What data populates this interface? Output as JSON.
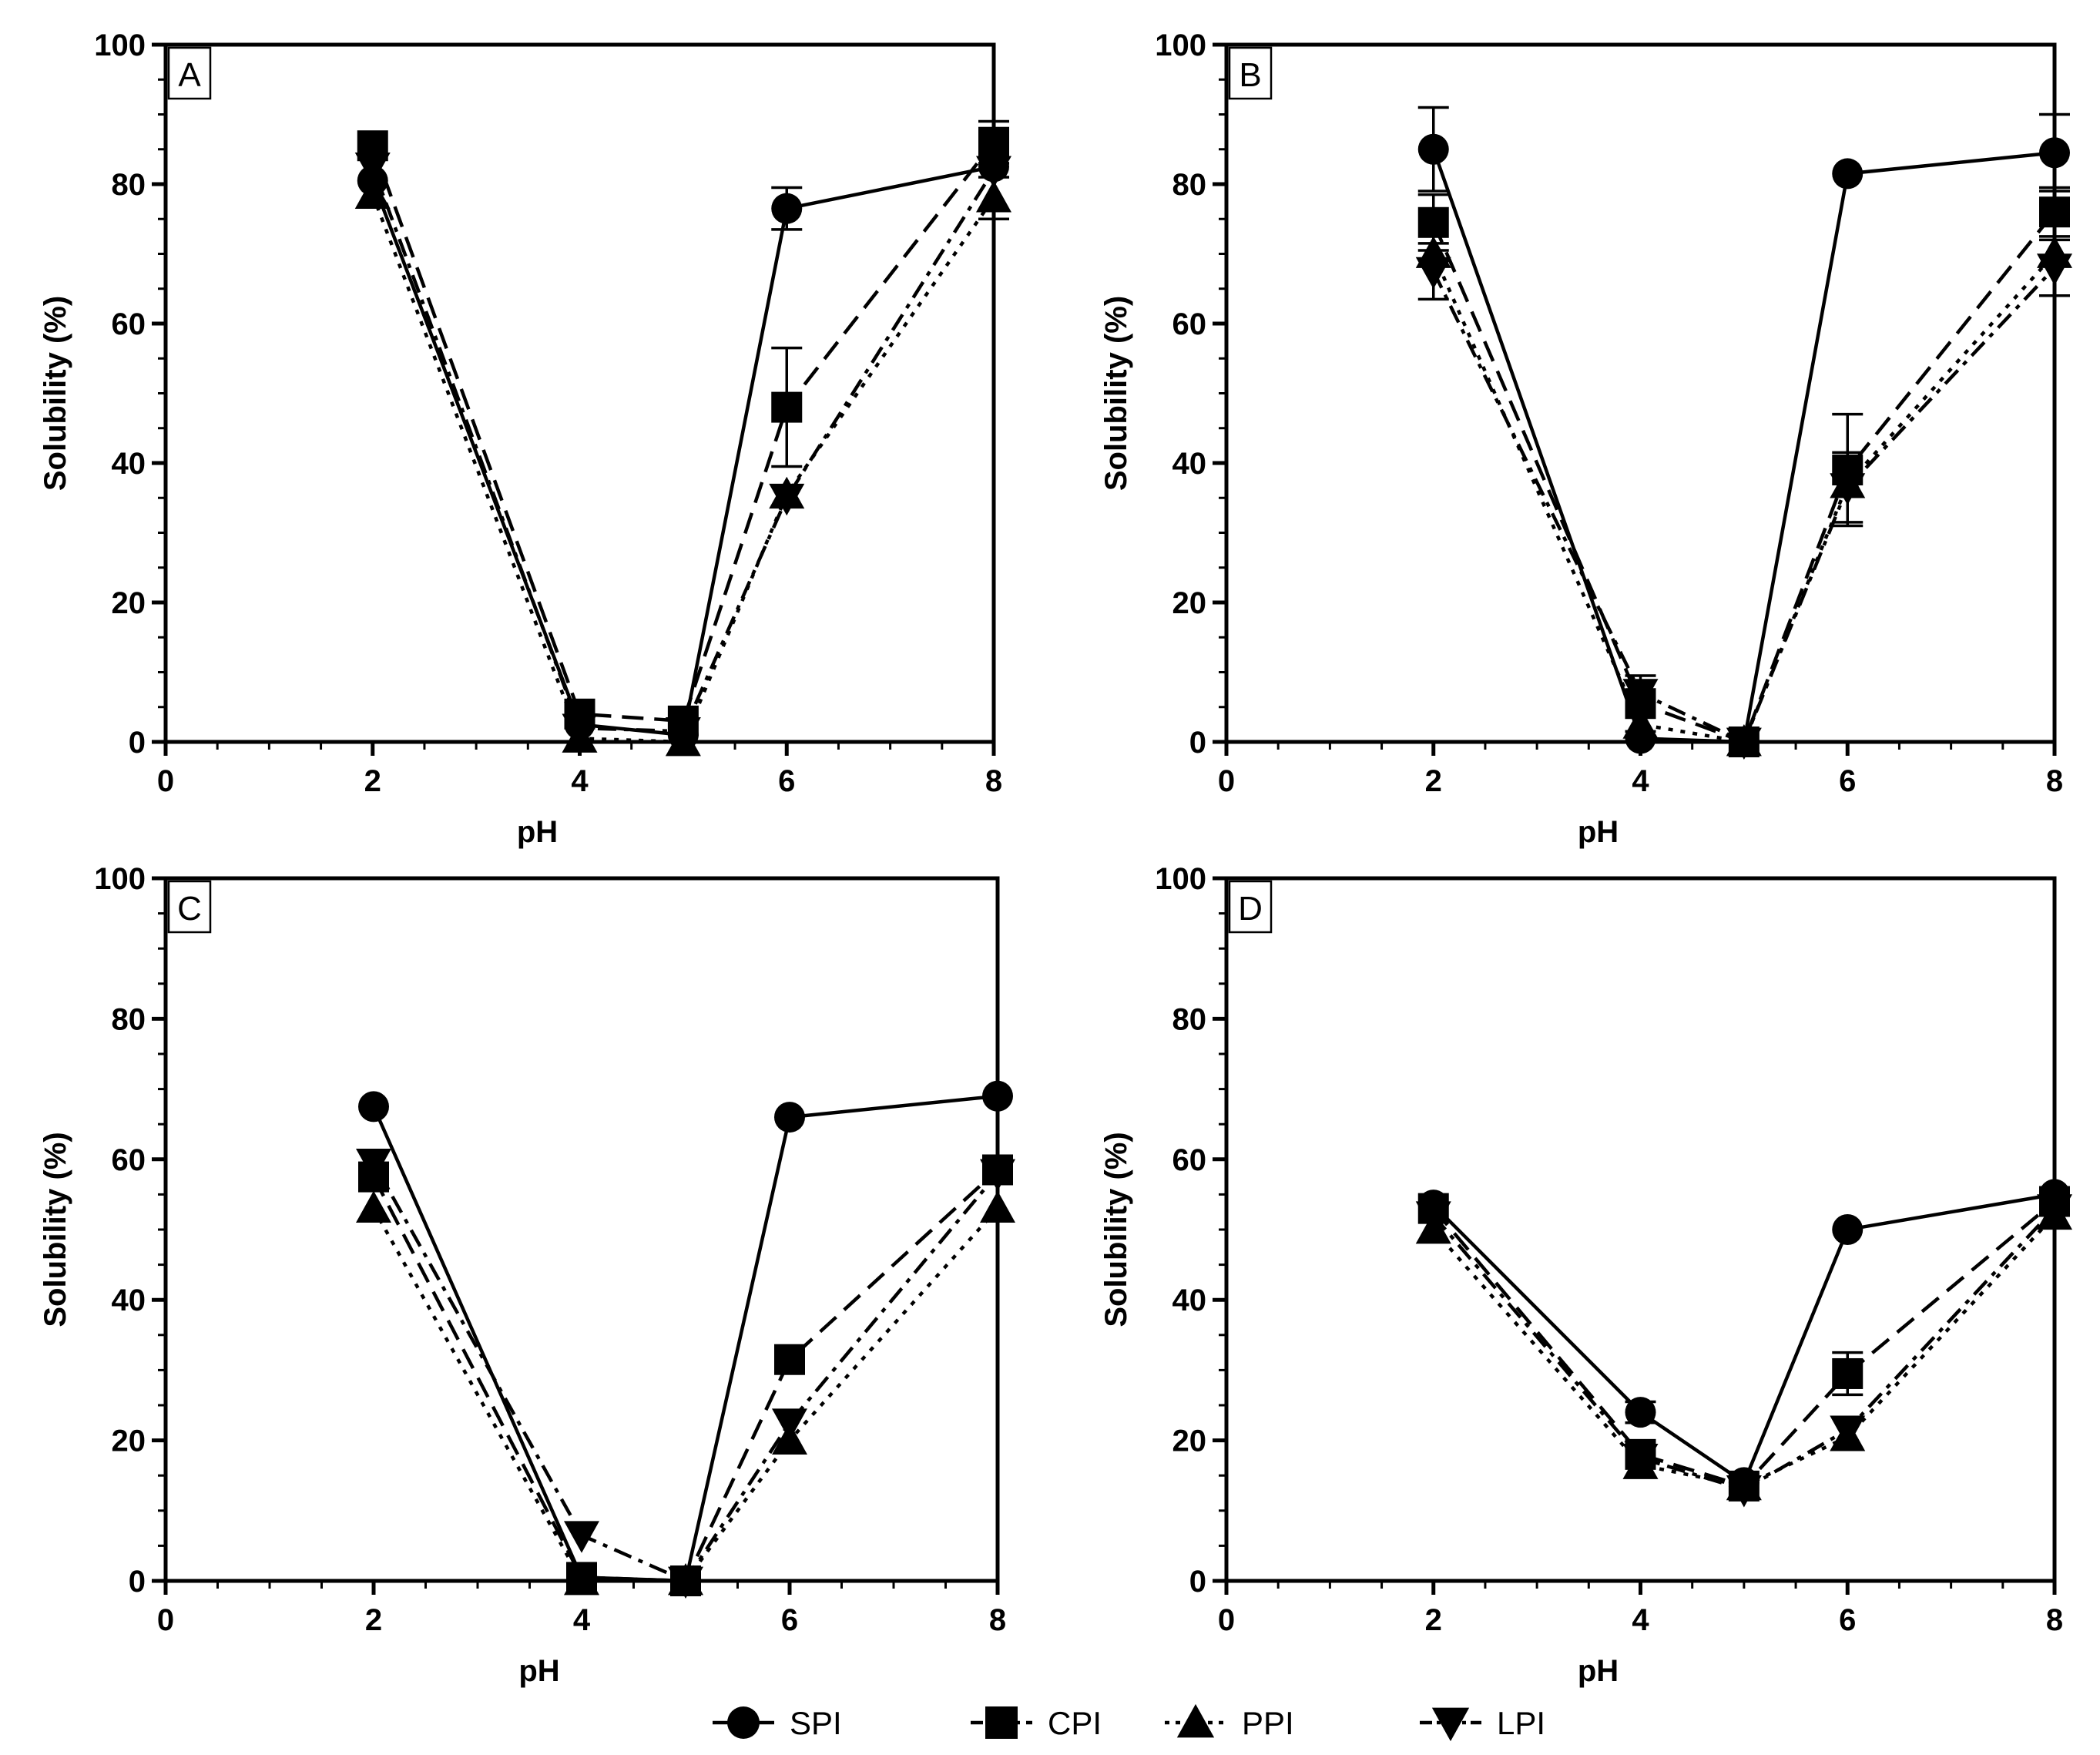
{
  "figure": {
    "legend": [
      {
        "name": "SPI",
        "marker": "circle",
        "dash": "solid"
      },
      {
        "name": "CPI",
        "marker": "square",
        "dash": "dashed"
      },
      {
        "name": "PPI",
        "marker": "triangle-up",
        "dash": "dotted"
      },
      {
        "name": "LPI",
        "marker": "triangle-down",
        "dash": "dashdot"
      }
    ]
  },
  "chart_data": [
    {
      "type": "line",
      "panel": "A",
      "xlabel": "pH",
      "ylabel": "Solubility (%)",
      "xlim": [
        0,
        8
      ],
      "ylim": [
        0,
        100
      ],
      "xticks": [
        0,
        2,
        4,
        6,
        8
      ],
      "yticks": [
        0,
        20,
        40,
        60,
        80,
        100
      ],
      "x": [
        2,
        4,
        5,
        6,
        8
      ],
      "series": [
        {
          "name": "SPI",
          "values": [
            80.5,
            2.5,
            1.0,
            76.5,
            82.5
          ],
          "errors": [
            0,
            0,
            0,
            3,
            0
          ]
        },
        {
          "name": "CPI",
          "values": [
            85.5,
            4.0,
            3.0,
            48.0,
            86.0
          ],
          "errors": [
            0,
            0,
            0,
            8.5,
            3
          ]
        },
        {
          "name": "PPI",
          "values": [
            78.5,
            0.5,
            0.0,
            35.5,
            78.0
          ],
          "errors": [
            0,
            0,
            0,
            0,
            3
          ]
        },
        {
          "name": "LPI",
          "values": [
            82.5,
            2.0,
            1.5,
            35.0,
            82.0
          ],
          "errors": [
            0,
            0,
            0,
            0,
            0
          ]
        }
      ]
    },
    {
      "type": "line",
      "panel": "B",
      "xlabel": "pH",
      "ylabel": "Solubility (%)",
      "xlim": [
        0,
        8
      ],
      "ylim": [
        0,
        100
      ],
      "xticks": [
        0,
        2,
        4,
        6,
        8
      ],
      "yticks": [
        0,
        20,
        40,
        60,
        80,
        100
      ],
      "x": [
        2,
        4,
        5,
        6,
        8
      ],
      "series": [
        {
          "name": "SPI",
          "values": [
            85.0,
            0.5,
            0.0,
            81.5,
            84.5
          ],
          "errors": [
            6,
            0,
            0,
            0,
            5.5
          ]
        },
        {
          "name": "CPI",
          "values": [
            74.5,
            5.5,
            0.0,
            39.0,
            76.0
          ],
          "errors": [
            4,
            4,
            0,
            8,
            3.5
          ]
        },
        {
          "name": "PPI",
          "values": [
            70.0,
            2.5,
            0.0,
            37.0,
            70.0
          ],
          "errors": [
            0,
            0,
            0,
            0,
            0
          ]
        },
        {
          "name": "LPI",
          "values": [
            67.5,
            7.0,
            0.0,
            36.5,
            68.0
          ],
          "errors": [
            4,
            0,
            0,
            5,
            4
          ]
        }
      ]
    },
    {
      "type": "line",
      "panel": "C",
      "xlabel": "pH",
      "ylabel": "Solubility (%)",
      "xlim": [
        0,
        8
      ],
      "ylim": [
        0,
        100
      ],
      "xticks": [
        0,
        2,
        4,
        6,
        8
      ],
      "yticks": [
        0,
        20,
        40,
        60,
        80,
        100
      ],
      "x": [
        2,
        4,
        5,
        6,
        8
      ],
      "series": [
        {
          "name": "SPI",
          "values": [
            67.5,
            0.5,
            0.0,
            66.0,
            69.0
          ],
          "errors": [
            0,
            0,
            0,
            0,
            0
          ]
        },
        {
          "name": "CPI",
          "values": [
            57.5,
            0.5,
            0.0,
            31.5,
            58.5
          ],
          "errors": [
            0,
            0,
            0,
            0,
            0
          ]
        },
        {
          "name": "PPI",
          "values": [
            53.0,
            0.0,
            0.0,
            20.0,
            53.0
          ],
          "errors": [
            0,
            0,
            0,
            0,
            0
          ]
        },
        {
          "name": "LPI",
          "values": [
            59.5,
            6.5,
            0.0,
            22.5,
            58.0
          ],
          "errors": [
            0,
            0,
            0,
            0,
            0
          ]
        }
      ]
    },
    {
      "type": "line",
      "panel": "D",
      "xlabel": "pH",
      "ylabel": "Solubility (%)",
      "xlim": [
        0,
        8
      ],
      "ylim": [
        0,
        100
      ],
      "xticks": [
        0,
        2,
        4,
        6,
        8
      ],
      "yticks": [
        0,
        20,
        40,
        60,
        80,
        100
      ],
      "x": [
        2,
        4,
        5,
        6,
        8
      ],
      "series": [
        {
          "name": "SPI",
          "values": [
            53.5,
            24.0,
            14.0,
            50.0,
            55.0
          ],
          "errors": [
            0,
            1.5,
            0,
            0,
            0
          ]
        },
        {
          "name": "CPI",
          "values": [
            53.0,
            18.0,
            13.5,
            29.5,
            54.0
          ],
          "errors": [
            0,
            0,
            0,
            3,
            0
          ]
        },
        {
          "name": "PPI",
          "values": [
            50.0,
            16.5,
            13.5,
            20.5,
            52.0
          ],
          "errors": [
            0,
            0,
            0,
            0,
            0
          ]
        },
        {
          "name": "LPI",
          "values": [
            52.0,
            17.5,
            13.0,
            21.5,
            53.0
          ],
          "errors": [
            0,
            0,
            0,
            0,
            0
          ]
        }
      ]
    }
  ]
}
